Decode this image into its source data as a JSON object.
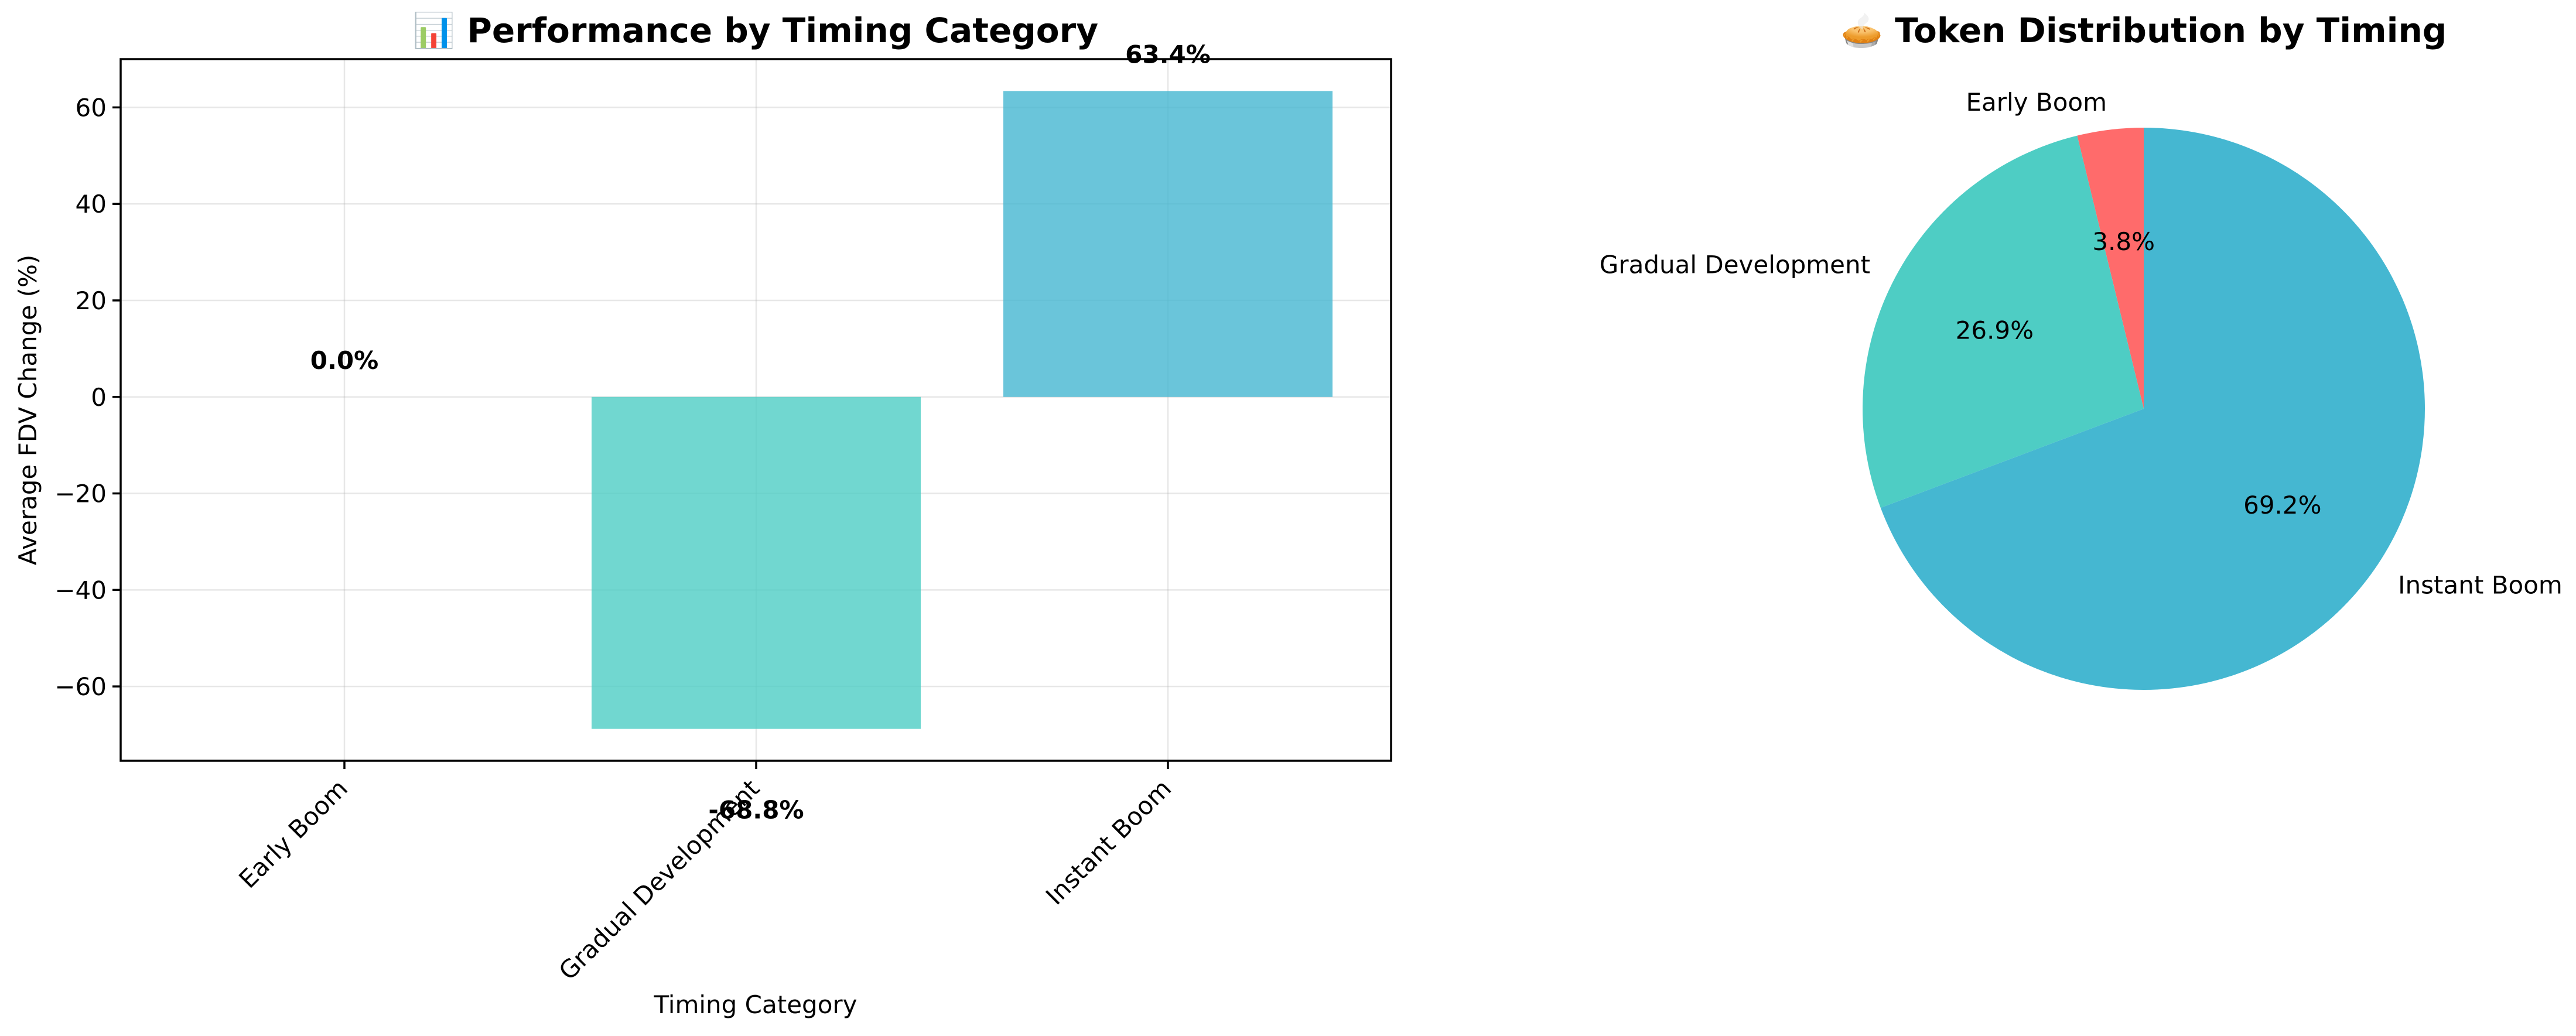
{
  "chart_data": [
    {
      "type": "bar",
      "title": "📊 Performance by Timing Category",
      "xlabel": "Timing Category",
      "ylabel": "Average FDV Change (%)",
      "categories": [
        "Early Boom",
        "Gradual Development",
        "Instant Boom"
      ],
      "values": [
        0.0,
        -68.8,
        63.4
      ],
      "value_labels": [
        "0.0%",
        "-68.8%",
        "63.4%"
      ],
      "colors": [
        "#ff6b6b",
        "#4ecdc4",
        "#45b7d1"
      ],
      "ylim": [
        -75.4,
        70.0
      ],
      "yticks": [
        -60,
        -40,
        -20,
        0,
        20,
        40,
        60
      ],
      "ytick_labels": [
        "−60",
        "−40",
        "−20",
        "0",
        "20",
        "40",
        "60"
      ],
      "grid": true
    },
    {
      "type": "pie",
      "title": "🥧 Token Distribution by Timing",
      "labels": [
        "Early Boom",
        "Gradual Development",
        "Instant Boom"
      ],
      "values": [
        3.8,
        26.9,
        69.2
      ],
      "value_labels": [
        "3.8%",
        "26.9%",
        "69.2%"
      ],
      "colors": [
        "#ff6b6b",
        "#4ecdc4",
        "#45b7d1"
      ],
      "start_angle_deg": 90,
      "direction": "counterclockwise"
    }
  ]
}
